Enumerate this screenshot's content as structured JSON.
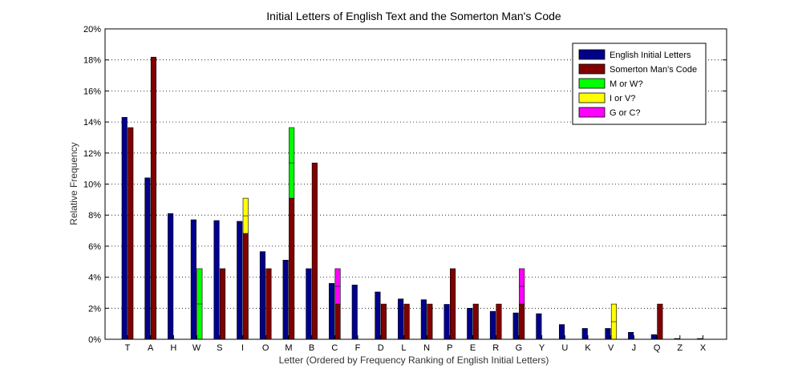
{
  "chart_data": {
    "type": "bar",
    "title": "Initial Letters of English Text and the Somerton Man's Code",
    "xlabel": "Letter (Ordered by Frequency Ranking of English Initial Letters)",
    "ylabel": "Relative Frequency",
    "ylim": [
      0,
      20
    ],
    "y_ticks": [
      0,
      2,
      4,
      6,
      8,
      10,
      12,
      14,
      16,
      18,
      20
    ],
    "y_tick_suffix": "%",
    "grid": "horizontal dotted",
    "legend_position": "top-right",
    "categories": [
      "T",
      "A",
      "H",
      "W",
      "S",
      "I",
      "O",
      "M",
      "B",
      "C",
      "F",
      "D",
      "L",
      "N",
      "P",
      "E",
      "R",
      "G",
      "Y",
      "U",
      "K",
      "V",
      "J",
      "Q",
      "Z",
      "X"
    ],
    "series": [
      {
        "name": "English Initial Letters",
        "color": "#00008B",
        "values": [
          14.3,
          10.4,
          8.1,
          7.7,
          7.65,
          7.6,
          5.65,
          5.1,
          4.55,
          3.6,
          3.5,
          3.05,
          2.6,
          2.55,
          2.25,
          2.0,
          1.8,
          1.7,
          1.65,
          0.95,
          0.7,
          0.7,
          0.45,
          0.3,
          0.05,
          0.05
        ]
      },
      {
        "name": "Somerton Man's Code",
        "color": "#800000",
        "values": [
          13.64,
          18.18,
          0,
          0,
          4.55,
          6.82,
          4.55,
          9.09,
          11.36,
          2.27,
          0,
          2.27,
          2.27,
          2.27,
          4.55,
          2.27,
          2.27,
          2.27,
          0,
          0,
          0,
          0,
          0,
          2.27,
          0,
          0
        ],
        "ambiguous_segments": [
          {
            "category": "W",
            "label": "M or W?",
            "from": 0,
            "to": 4.55
          },
          {
            "category": "I",
            "label": "I or V?",
            "from": 6.82,
            "to": 9.09
          },
          {
            "category": "M",
            "label": "M or W?",
            "from": 9.09,
            "to": 13.64
          },
          {
            "category": "C",
            "label": "G or C?",
            "from": 2.27,
            "to": 4.55
          },
          {
            "category": "G",
            "label": "G or C?",
            "from": 2.27,
            "to": 4.55
          },
          {
            "category": "V",
            "label": "I or V?",
            "from": 0,
            "to": 2.27
          }
        ]
      }
    ],
    "legend": [
      {
        "label": "English Initial Letters",
        "color": "#00008B"
      },
      {
        "label": "Somerton Man's Code",
        "color": "#800000"
      },
      {
        "label": "M or W?",
        "color": "#00FF00"
      },
      {
        "label": "I or V?",
        "color": "#FFFF00"
      },
      {
        "label": "G or C?",
        "color": "#FF00FF"
      }
    ]
  }
}
